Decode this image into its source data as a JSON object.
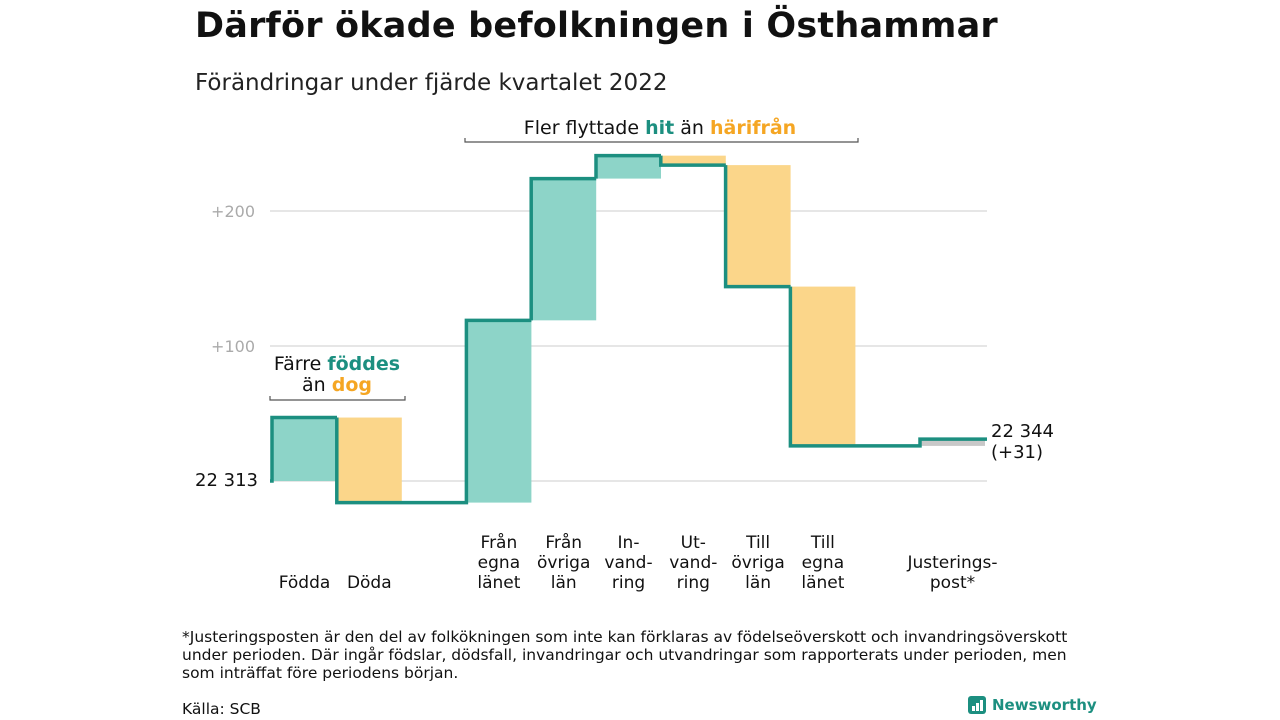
{
  "title": "Därför ökade befolkningen i Östhammar",
  "subtitle": "Förändringar under fjärde kvartalet 2022",
  "chart_data": {
    "type": "waterfall",
    "start_value": 22313,
    "start_label": "22 313",
    "end_label_line1": "22 344",
    "end_label_line2": "(+31)",
    "y_ticks": [
      {
        "value": 100,
        "label": "+100"
      },
      {
        "value": 200,
        "label": "+200"
      }
    ],
    "ylim": [
      -20,
      245
    ],
    "categories": [
      {
        "label": [
          "",
          "",
          "Födda"
        ],
        "change": 47
      },
      {
        "label": [
          "",
          "",
          "Döda"
        ],
        "change": -63
      },
      {
        "label": [
          "Från",
          "egna",
          "länet"
        ],
        "change": 135
      },
      {
        "label": [
          "Från",
          "övriga",
          "län"
        ],
        "change": 105
      },
      {
        "label": [
          "In-",
          "vand-",
          "ring"
        ],
        "change": 17
      },
      {
        "label": [
          "Ut-",
          "vand-",
          "ring"
        ],
        "change": -7
      },
      {
        "label": [
          "Till",
          "övriga",
          "län"
        ],
        "change": -90
      },
      {
        "label": [
          "Till",
          "egna",
          "länet"
        ],
        "change": -118
      },
      {
        "label": [
          "",
          "Justerings-",
          "post*"
        ],
        "change": 5
      }
    ],
    "slot_positions": [
      0,
      1,
      3,
      4,
      5,
      6,
      7,
      8,
      10
    ],
    "annotations": {
      "births_deaths": [
        "Färre ",
        "föddes",
        "än ",
        "dog"
      ],
      "migration": [
        "Fler flyttade ",
        "hit",
        " än ",
        "härifrån"
      ]
    },
    "colors": {
      "increase": "#8dd4c8",
      "decrease": "#fbd68a",
      "adjustment": "#c8c8c8",
      "step_line": "#1c8f80",
      "teal_text": "#1c8f80",
      "orange_text": "#f5a623",
      "grid": "#dddddd",
      "tick_text": "#aaaaaa"
    }
  },
  "footnote": "*Justeringsposten är den del av folkökningen som inte kan förklaras av födelseöverskott och invandringsöverskott under perioden. Där ingår födslar, dödsfall, invandringar och utvandringar som rapporterats under perioden, men som inträffat före periodens början.",
  "source": "Källa: SCB",
  "brand": "Newsworthy"
}
